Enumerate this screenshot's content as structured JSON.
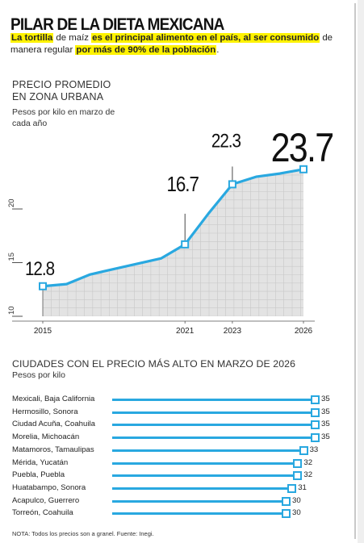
{
  "header": {
    "title": "PILAR DE LA DIETA MEXICANA",
    "subtitle_parts": [
      {
        "text": "La tortilla",
        "highlight": true
      },
      {
        "text": " de maíz ",
        "highlight": false
      },
      {
        "text": "es el principal alimento en el país, al ser consumido",
        "highlight": true
      },
      {
        "text": " de manera regular ",
        "highlight": false
      },
      {
        "text": "por más de 90% de la población",
        "highlight": true
      },
      {
        "text": ".",
        "highlight": false
      }
    ]
  },
  "colors": {
    "line": "#29a8e0",
    "highlight": "#fff200",
    "area": "#e3e3e3",
    "grid": "#c8c8c8"
  },
  "chart_data": [
    {
      "type": "area",
      "title_lines": [
        "PRECIO PROMEDIO",
        "EN ZONA URBANA"
      ],
      "subtitle": "Pesos por kilo en marzo de cada año",
      "x": [
        2015,
        2016,
        2017,
        2018,
        2019,
        2020,
        2021,
        2022,
        2023,
        2024,
        2025,
        2026
      ],
      "y": [
        12.8,
        13.0,
        13.9,
        14.4,
        14.9,
        15.4,
        16.7,
        19.6,
        22.3,
        23.0,
        23.3,
        23.7
      ],
      "x_tick_labels": [
        "2015",
        "2021",
        "2023",
        "2026"
      ],
      "y_tick_labels": [
        "10",
        "15",
        "20"
      ],
      "ylim": [
        10,
        25
      ],
      "labeled_points": [
        {
          "x": 2015,
          "label": "12.8"
        },
        {
          "x": 2021,
          "label": "16.7"
        },
        {
          "x": 2023,
          "label": "22.3"
        },
        {
          "x": 2026,
          "label": "23.7"
        }
      ],
      "grid": true
    },
    {
      "type": "bar",
      "orientation": "horizontal",
      "title": "CIUDADES CON EL PRECIO MÁS ALTO EN MARZO DE 2026",
      "subtitle": "Pesos por kilo",
      "categories": [
        "Mexicali, Baja California",
        "Hermosillo, Sonora",
        "Ciudad Acuña, Coahuila",
        "Morelia, Michoacán",
        "Matamoros, Tamaulipas",
        "Mérida, Yucatán",
        "Puebla, Puebla",
        "Huatabampo, Sonora",
        "Acapulco, Guerrero",
        "Torreón, Coahuila"
      ],
      "values": [
        35,
        35,
        35,
        35,
        33,
        32,
        32,
        31,
        30,
        30
      ]
    }
  ],
  "note": "NOTA: Todos los precios son a granel. Fuente: Inegi."
}
